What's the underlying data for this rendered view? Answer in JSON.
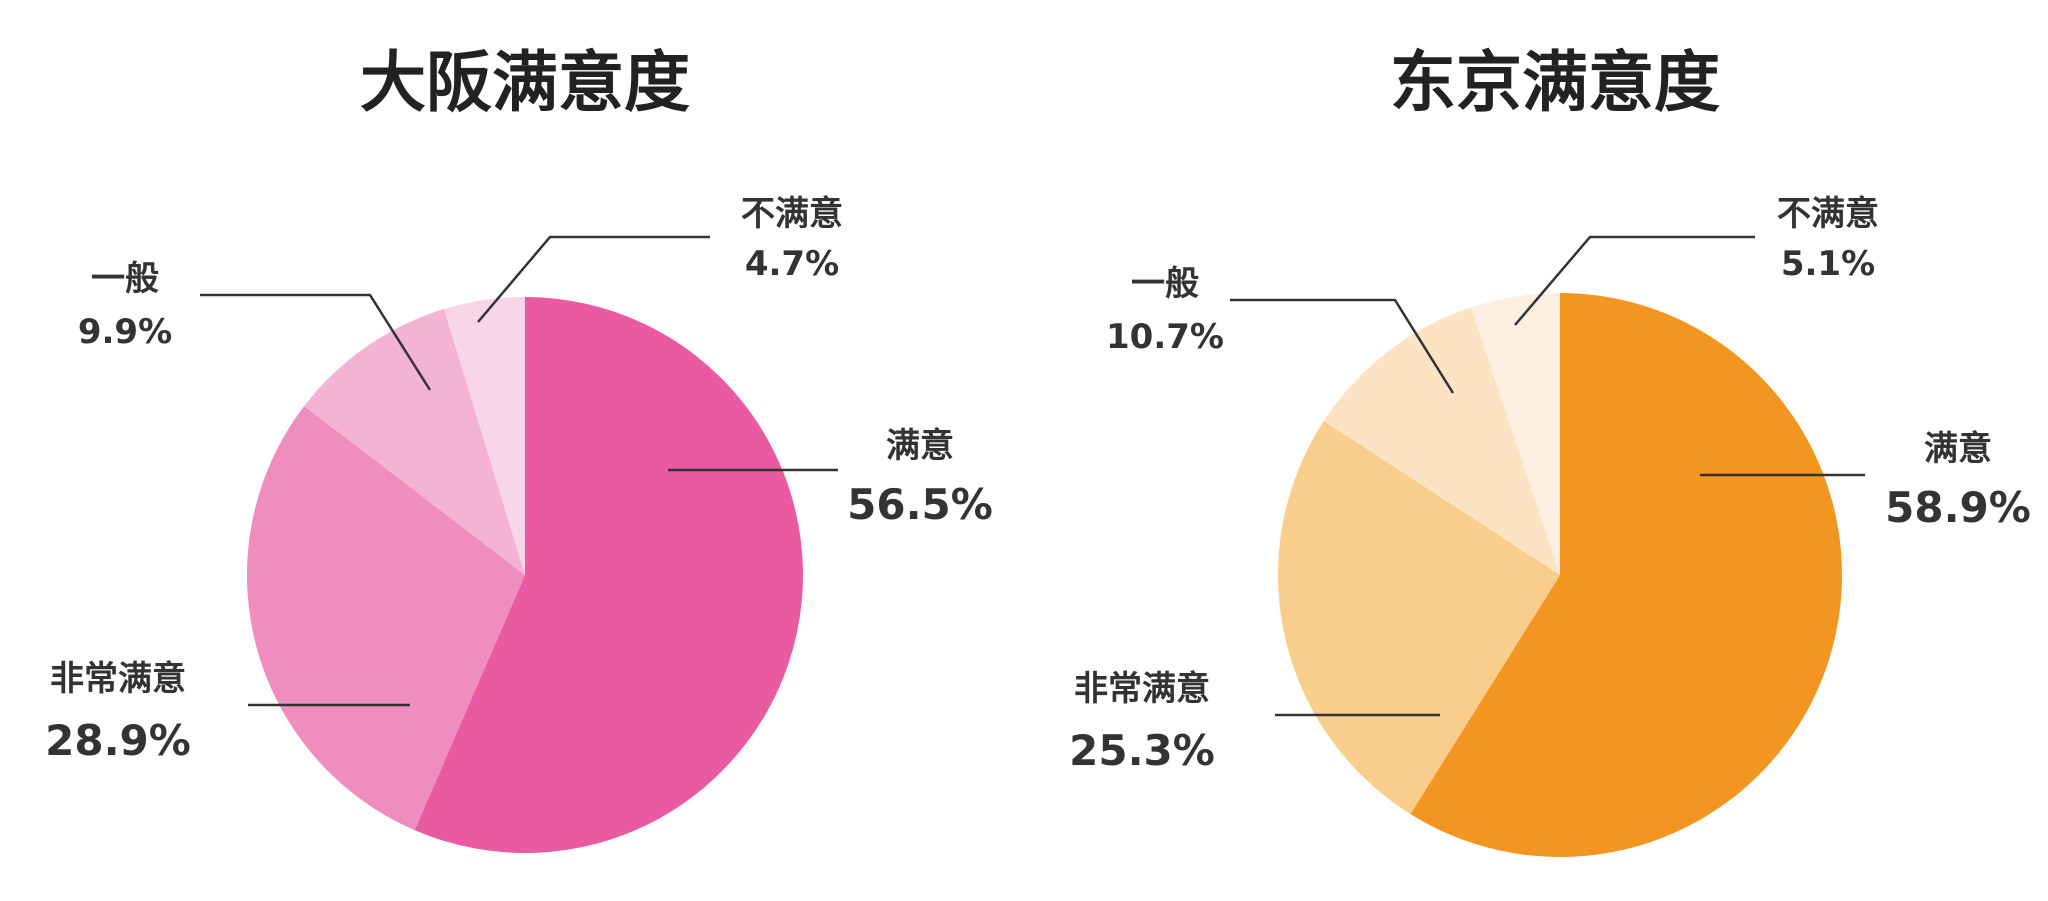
{
  "chart_data": [
    {
      "type": "pie",
      "title": "大阪满意度",
      "slices": [
        {
          "label": "满意",
          "value": 56.5,
          "display": "56.5%",
          "color": "#EA5AA0"
        },
        {
          "label": "非常满意",
          "value": 28.9,
          "display": "28.9%",
          "color": "#F08DBF"
        },
        {
          "label": "一般",
          "value": 9.9,
          "display": "9.9%",
          "color": "#F4B3D3"
        },
        {
          "label": "不满意",
          "value": 4.7,
          "display": "4.7%",
          "color": "#F8D6E7"
        }
      ]
    },
    {
      "type": "pie",
      "title": "东京满意度",
      "slices": [
        {
          "label": "满意",
          "value": 58.9,
          "display": "58.9%",
          "color": "#F39621"
        },
        {
          "label": "非常满意",
          "value": 25.3,
          "display": "25.3%",
          "color": "#F9CE8D"
        },
        {
          "label": "一般",
          "value": 10.7,
          "display": "10.7%",
          "color": "#FCE3C4"
        },
        {
          "label": "不满意",
          "value": 5.1,
          "display": "5.1%",
          "color": "#FDF0E1"
        }
      ]
    }
  ]
}
